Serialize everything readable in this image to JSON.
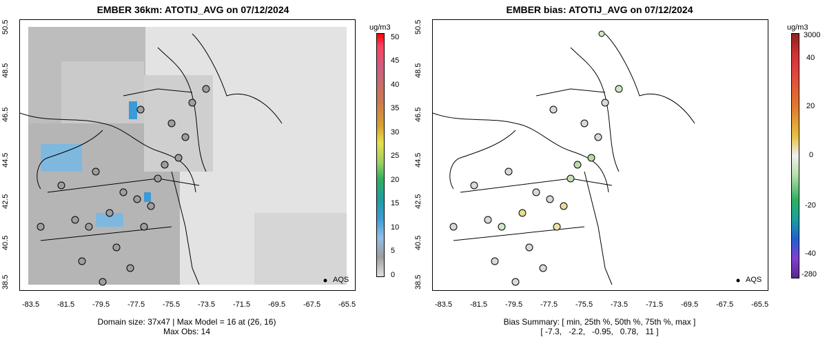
{
  "left_panel": {
    "title": "EMBER 36km: ATOTIJ_AVG on 07/12/2024",
    "x_ticks": [
      "-83.5",
      "-81.5",
      "-79.5",
      "-77.5",
      "-75.5",
      "-73.5",
      "-71.5",
      "-69.5",
      "-67.5",
      "-65.5"
    ],
    "y_ticks": [
      "38.5",
      "40.5",
      "42.5",
      "44.5",
      "46.5",
      "48.5",
      "50.5"
    ],
    "colorbar": {
      "unit": "ug/m3",
      "labels": [
        "50",
        "45",
        "40",
        "35",
        "30",
        "25",
        "20",
        "15",
        "10",
        "5",
        "0"
      ]
    },
    "legend_label": "AQS",
    "caption_line1": "Domain size: 37x47 | Max Model = 16 at (26, 16)",
    "caption_line2": "Max Obs: 14"
  },
  "right_panel": {
    "title": "EMBER bias: ATOTIJ_AVG on 07/12/2024",
    "x_ticks": [
      "-83.5",
      "-81.5",
      "-79.5",
      "-77.5",
      "-75.5",
      "-73.5",
      "-71.5",
      "-69.5",
      "-67.5",
      "-65.5"
    ],
    "y_ticks": [
      "38.5",
      "40.5",
      "42.5",
      "44.5",
      "46.5",
      "48.5",
      "50.5"
    ],
    "colorbar": {
      "unit": "ug/m3",
      "labels": [
        "3000",
        "40",
        "20",
        "0",
        "-20",
        "-40",
        "-280"
      ]
    },
    "legend_label": "AQS",
    "caption_line1": "Bias Summary: [ min, 25th %, 50th %, 75th %, max ]",
    "caption_line2": "[ -7.3,   -2.2,   -0.95,   0.78,   11 ]"
  },
  "colors": {
    "map_land_gray": "#c8c8c8",
    "map_ocean_light": "#e6e6e6",
    "blue_hotspot": "#3b9bd6",
    "boundary": "#000000"
  }
}
